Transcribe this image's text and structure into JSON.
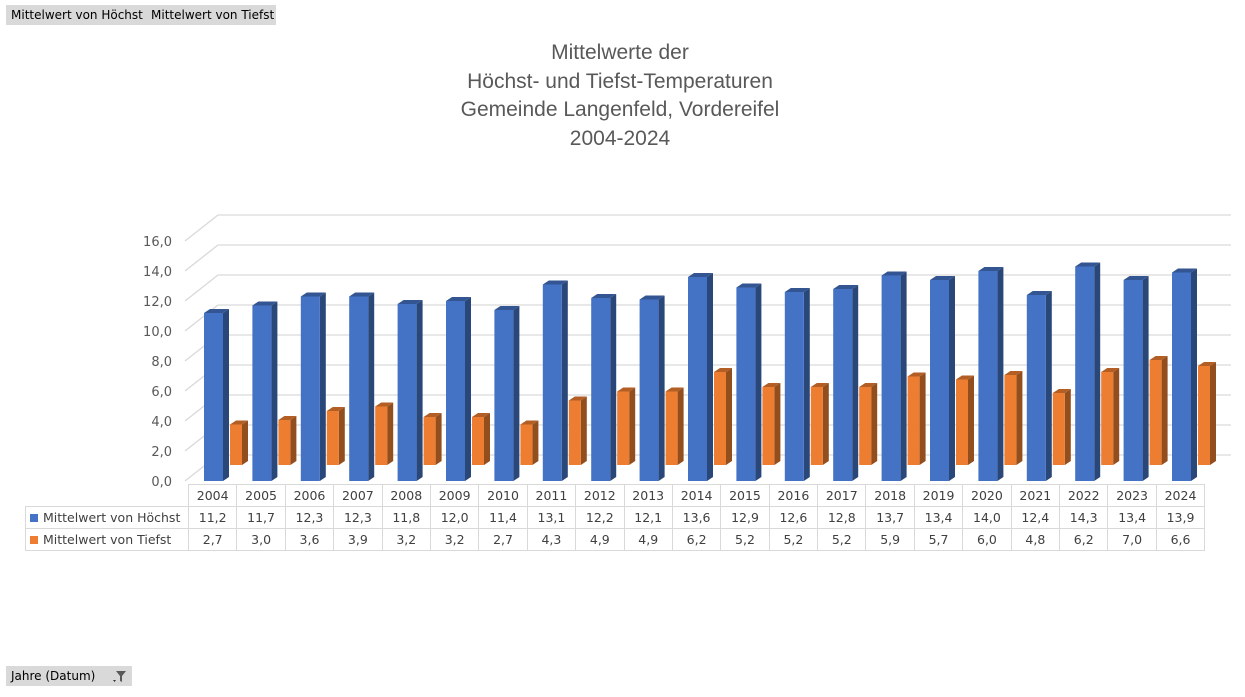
{
  "field_buttons": {
    "series1": "Mittelwert von Höchst",
    "series2": "Mittelwert von Tiefst",
    "axis": "Jahre (Datum)"
  },
  "icons": {
    "filter": "filter-dropdown-icon"
  },
  "chart_data": {
    "type": "bar",
    "style": "3d-clustered-column-with-data-table",
    "title_lines": [
      "Mittelwerte der",
      "Höchst- und Tiefst-Temperaturen",
      "Gemeinde Langenfeld, Vordereifel",
      "2004-2024"
    ],
    "categories": [
      "2004",
      "2005",
      "2006",
      "2007",
      "2008",
      "2009",
      "2010",
      "2011",
      "2012",
      "2013",
      "2014",
      "2015",
      "2016",
      "2017",
      "2018",
      "2019",
      "2020",
      "2021",
      "2022",
      "2023",
      "2024"
    ],
    "series": [
      {
        "name": "Mittelwert von Höchst",
        "color": "#4472c4",
        "values": [
          11.2,
          11.7,
          12.3,
          12.3,
          11.8,
          12.0,
          11.4,
          13.1,
          12.2,
          12.1,
          13.6,
          12.9,
          12.6,
          12.8,
          13.7,
          13.4,
          14.0,
          12.4,
          14.3,
          13.4,
          13.9
        ],
        "labels": [
          "11,2",
          "11,7",
          "12,3",
          "12,3",
          "11,8",
          "12,0",
          "11,4",
          "13,1",
          "12,2",
          "12,1",
          "13,6",
          "12,9",
          "12,6",
          "12,8",
          "13,7",
          "13,4",
          "14,0",
          "12,4",
          "14,3",
          "13,4",
          "13,9"
        ]
      },
      {
        "name": "Mittelwert von Tiefst",
        "color": "#ed7d31",
        "values": [
          2.7,
          3.0,
          3.6,
          3.9,
          3.2,
          3.2,
          2.7,
          4.3,
          4.9,
          4.9,
          6.2,
          5.2,
          5.2,
          5.2,
          5.9,
          5.7,
          6.0,
          4.8,
          6.2,
          7.0,
          6.6
        ],
        "labels": [
          "2,7",
          "3,0",
          "3,6",
          "3,9",
          "3,2",
          "3,2",
          "2,7",
          "4,3",
          "4,9",
          "4,9",
          "6,2",
          "5,2",
          "5,2",
          "5,2",
          "5,9",
          "5,7",
          "6,0",
          "4,8",
          "6,2",
          "7,0",
          "6,6"
        ]
      }
    ],
    "ylim": [
      0,
      16
    ],
    "yticks": [
      "0,0",
      "2,0",
      "4,0",
      "6,0",
      "8,0",
      "10,0",
      "12,0",
      "14,0",
      "16,0"
    ],
    "grid": true,
    "legend": "data-table"
  }
}
